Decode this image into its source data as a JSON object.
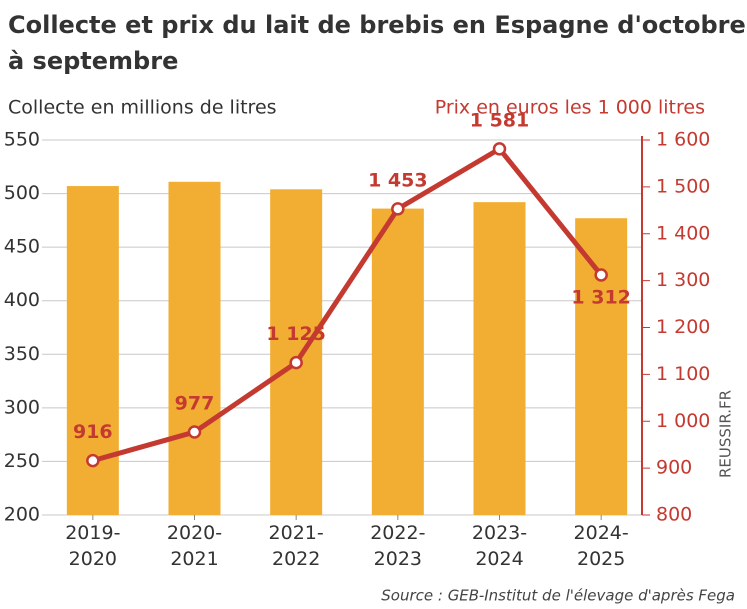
{
  "chart_data": {
    "type": "combo",
    "title": "Collecte et prix du lait de brebis en Espagne d'octobre à septembre",
    "y_label": "Collecte en millions de litres",
    "y2_label": "Prix en euros les 1 000 litres",
    "source": "Source : GEB-Institut de l'élevage d'après Fega",
    "watermark": "REUSSIR.FR",
    "categories": [
      "2019-2020",
      "2020-2021",
      "2021-2022",
      "2022-2023",
      "2023-2024",
      "2024-2025"
    ],
    "series": [
      {
        "type": "bar",
        "color": "#f2ae33",
        "values": [
          507,
          511,
          504,
          486,
          492,
          477
        ]
      },
      {
        "type": "line",
        "axis": "y2",
        "color": "#c43a31",
        "values": [
          916,
          977,
          1125,
          1453,
          1581,
          1312
        ],
        "value_labels": [
          "916",
          "977",
          "1 125",
          "1 453",
          "1 581",
          "1 312"
        ]
      }
    ],
    "ylim": [
      200,
      550
    ],
    "yticks": [
      200,
      250,
      300,
      350,
      400,
      450,
      500,
      550
    ],
    "y2lim": [
      800,
      1600
    ],
    "y2ticks": [
      800,
      900,
      {
        "value": 1000,
        "label": "1 000"
      },
      {
        "value": 1100,
        "label": "1 100"
      },
      {
        "value": 1200,
        "label": "1 200"
      },
      {
        "value": 1300,
        "label": "1 300"
      },
      {
        "value": 1400,
        "label": "1 400"
      },
      {
        "value": 1500,
        "label": "1 500"
      },
      {
        "value": 1600,
        "label": "1 600"
      }
    ],
    "grid": true
  }
}
